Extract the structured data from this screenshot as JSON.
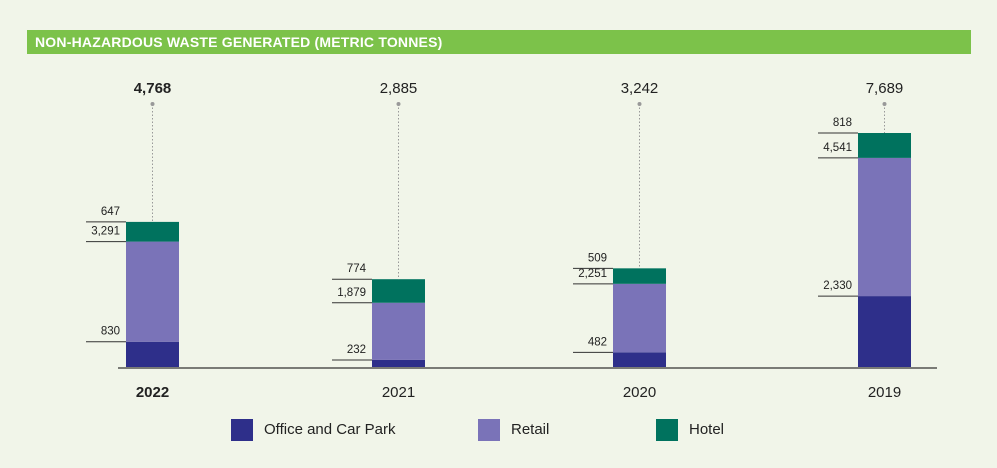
{
  "chart_data": {
    "type": "bar",
    "stacked": true,
    "title": "NON-HAZARDOUS WASTE GENERATED (METRIC TONNES)",
    "categories": [
      "2022",
      "2021",
      "2020",
      "2019"
    ],
    "highlight_category": "2022",
    "totals": [
      "4,768",
      "2,885",
      "3,242",
      "7,689"
    ],
    "series": [
      {
        "name": "Office and Car Park",
        "color": "#2e2f8a",
        "values": [
          830,
          232,
          482,
          2330
        ],
        "labels": [
          "830",
          "232",
          "482",
          "2,330"
        ]
      },
      {
        "name": "Retail",
        "color": "#7a73b8",
        "values": [
          3291,
          1879,
          2251,
          4541
        ],
        "labels": [
          "3,291",
          "1,879",
          "2,251",
          "4,541"
        ]
      },
      {
        "name": "Hotel",
        "color": "#00725e",
        "values": [
          647,
          774,
          509,
          818
        ],
        "labels": [
          "647",
          "774",
          "509",
          "818"
        ]
      }
    ],
    "legend_position": "bottom",
    "grid": false
  }
}
